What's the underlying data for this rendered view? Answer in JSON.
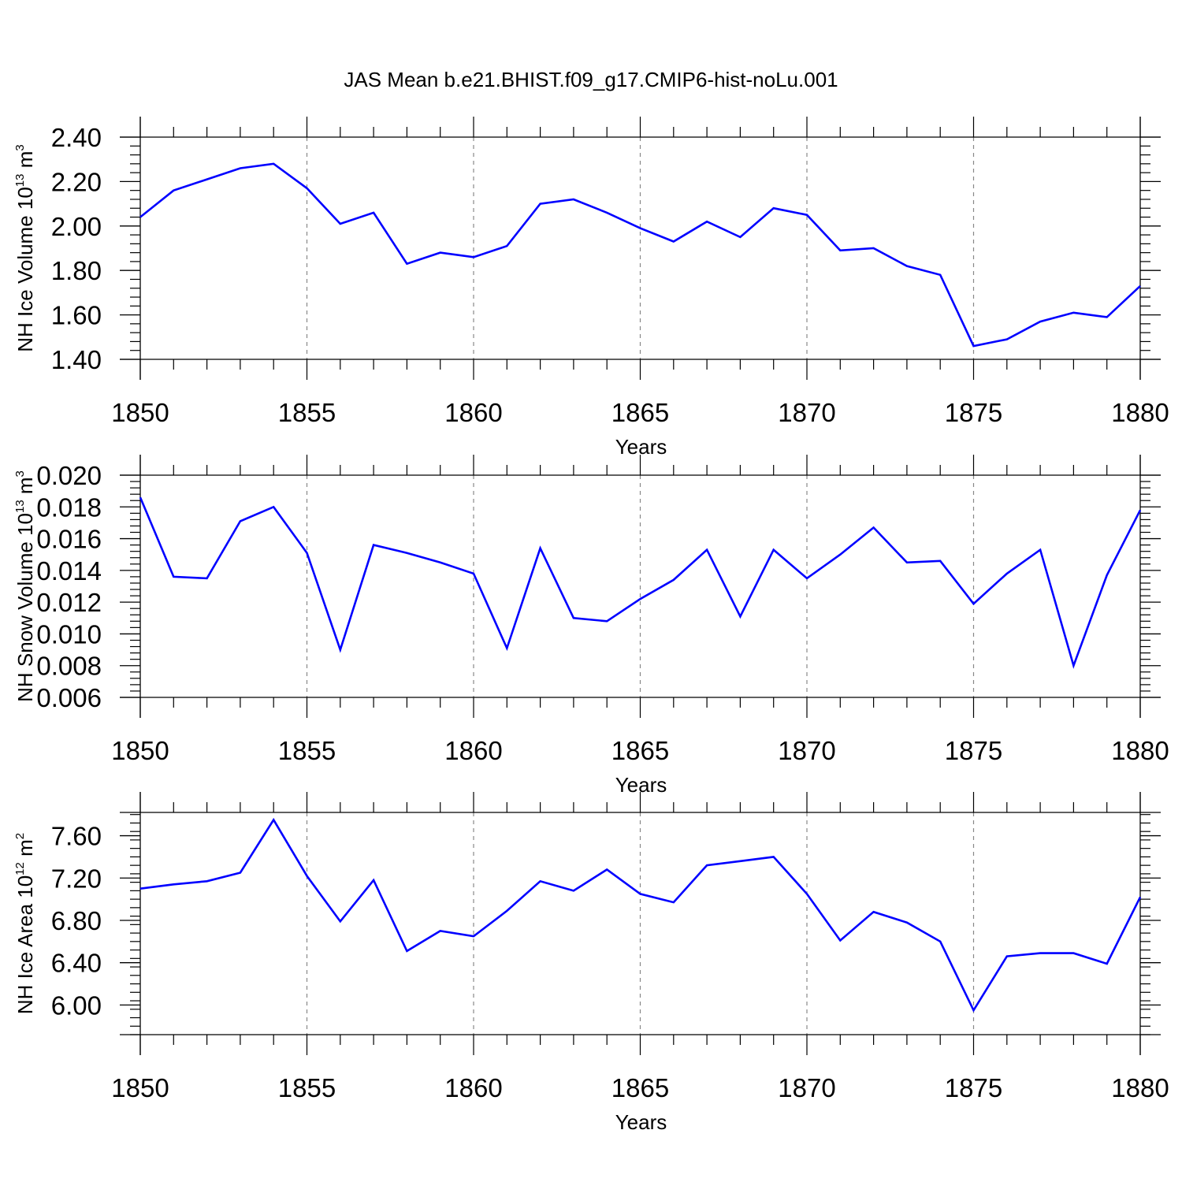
{
  "title": "JAS Mean b.e21.BHIST.f09_g17.CMIP6-hist-noLu.001",
  "line_color": "#0000ff",
  "chart_data": [
    {
      "type": "line",
      "ylabel": "NH Ice Volume 10",
      "ylabel_exp": "13",
      "ylabel_unit": " m",
      "ylabel_unit_exp": "3",
      "xlabel": "Years",
      "ylim": [
        1.4,
        2.4
      ],
      "yticks": [
        1.4,
        1.6,
        1.8,
        2.0,
        2.2,
        2.4
      ],
      "ytick_labels": [
        "1.40",
        "1.60",
        "1.80",
        "2.00",
        "2.20",
        "2.40"
      ],
      "yminor_step": 0.04,
      "xlim": [
        1850,
        1880
      ],
      "xticks": [
        1850,
        1855,
        1860,
        1865,
        1870,
        1875,
        1880
      ],
      "xtick_labels": [
        "1850",
        "1855",
        "1860",
        "1865",
        "1870",
        "1875",
        "1880"
      ],
      "grid": "vertical dashed at major x ticks",
      "x": [
        1850,
        1851,
        1852,
        1853,
        1854,
        1855,
        1856,
        1857,
        1858,
        1859,
        1860,
        1861,
        1862,
        1863,
        1864,
        1865,
        1866,
        1867,
        1868,
        1869,
        1870,
        1871,
        1872,
        1873,
        1874,
        1875,
        1876,
        1877,
        1878,
        1879,
        1880
      ],
      "y": [
        2.04,
        2.16,
        2.21,
        2.26,
        2.28,
        2.17,
        2.01,
        2.06,
        1.83,
        1.88,
        1.86,
        1.91,
        2.1,
        2.12,
        2.06,
        1.99,
        1.93,
        2.02,
        1.95,
        2.08,
        2.05,
        1.89,
        1.9,
        1.82,
        1.78,
        1.46,
        1.49,
        1.57,
        1.61,
        1.59,
        1.73
      ]
    },
    {
      "type": "line",
      "ylabel": "NH Snow Volume 10",
      "ylabel_exp": "13",
      "ylabel_unit": " m",
      "ylabel_unit_exp": "3",
      "xlabel": "Years",
      "ylim": [
        0.006,
        0.02
      ],
      "yticks": [
        0.006,
        0.008,
        0.01,
        0.012,
        0.014,
        0.016,
        0.018,
        0.02
      ],
      "ytick_labels": [
        "0.006",
        "0.008",
        "0.010",
        "0.012",
        "0.014",
        "0.016",
        "0.018",
        "0.020"
      ],
      "yminor_step": 0.0004,
      "xlim": [
        1850,
        1880
      ],
      "xticks": [
        1850,
        1855,
        1860,
        1865,
        1870,
        1875,
        1880
      ],
      "xtick_labels": [
        "1850",
        "1855",
        "1860",
        "1865",
        "1870",
        "1875",
        "1880"
      ],
      "grid": "vertical dashed at major x ticks",
      "x": [
        1850,
        1851,
        1852,
        1853,
        1854,
        1855,
        1856,
        1857,
        1858,
        1859,
        1860,
        1861,
        1862,
        1863,
        1864,
        1865,
        1866,
        1867,
        1868,
        1869,
        1870,
        1871,
        1872,
        1873,
        1874,
        1875,
        1876,
        1877,
        1878,
        1879,
        1880
      ],
      "y": [
        0.0186,
        0.0136,
        0.0135,
        0.0171,
        0.018,
        0.0151,
        0.009,
        0.0156,
        0.0151,
        0.0145,
        0.0138,
        0.0091,
        0.0154,
        0.011,
        0.0108,
        0.0122,
        0.0134,
        0.0153,
        0.0111,
        0.0153,
        0.0135,
        0.015,
        0.0167,
        0.0145,
        0.0146,
        0.0119,
        0.0138,
        0.0153,
        0.008,
        0.0137,
        0.0178
      ]
    },
    {
      "type": "line",
      "ylabel": "NH Ice Area 10",
      "ylabel_exp": "12",
      "ylabel_unit": " m",
      "ylabel_unit_exp": "2",
      "xlabel": "Years",
      "ylim": [
        5.72,
        7.82
      ],
      "yticks": [
        6.0,
        6.4,
        6.8,
        7.2,
        7.6
      ],
      "ytick_labels": [
        "6.00",
        "6.40",
        "6.80",
        "7.20",
        "7.60"
      ],
      "yminor_step": 0.08,
      "xlim": [
        1850,
        1880
      ],
      "xticks": [
        1850,
        1855,
        1860,
        1865,
        1870,
        1875,
        1880
      ],
      "xtick_labels": [
        "1850",
        "1855",
        "1860",
        "1865",
        "1870",
        "1875",
        "1880"
      ],
      "grid": "vertical dashed at major x ticks",
      "x": [
        1850,
        1851,
        1852,
        1853,
        1854,
        1855,
        1856,
        1857,
        1858,
        1859,
        1860,
        1861,
        1862,
        1863,
        1864,
        1865,
        1866,
        1867,
        1868,
        1869,
        1870,
        1871,
        1872,
        1873,
        1874,
        1875,
        1876,
        1877,
        1878,
        1879,
        1880
      ],
      "y": [
        7.1,
        7.14,
        7.17,
        7.25,
        7.75,
        7.22,
        6.79,
        7.18,
        6.51,
        6.7,
        6.65,
        6.89,
        7.17,
        7.08,
        7.28,
        7.05,
        6.97,
        7.32,
        7.36,
        7.4,
        7.05,
        6.61,
        6.88,
        6.78,
        6.6,
        5.95,
        6.46,
        6.49,
        6.49,
        6.39,
        7.02
      ]
    }
  ]
}
